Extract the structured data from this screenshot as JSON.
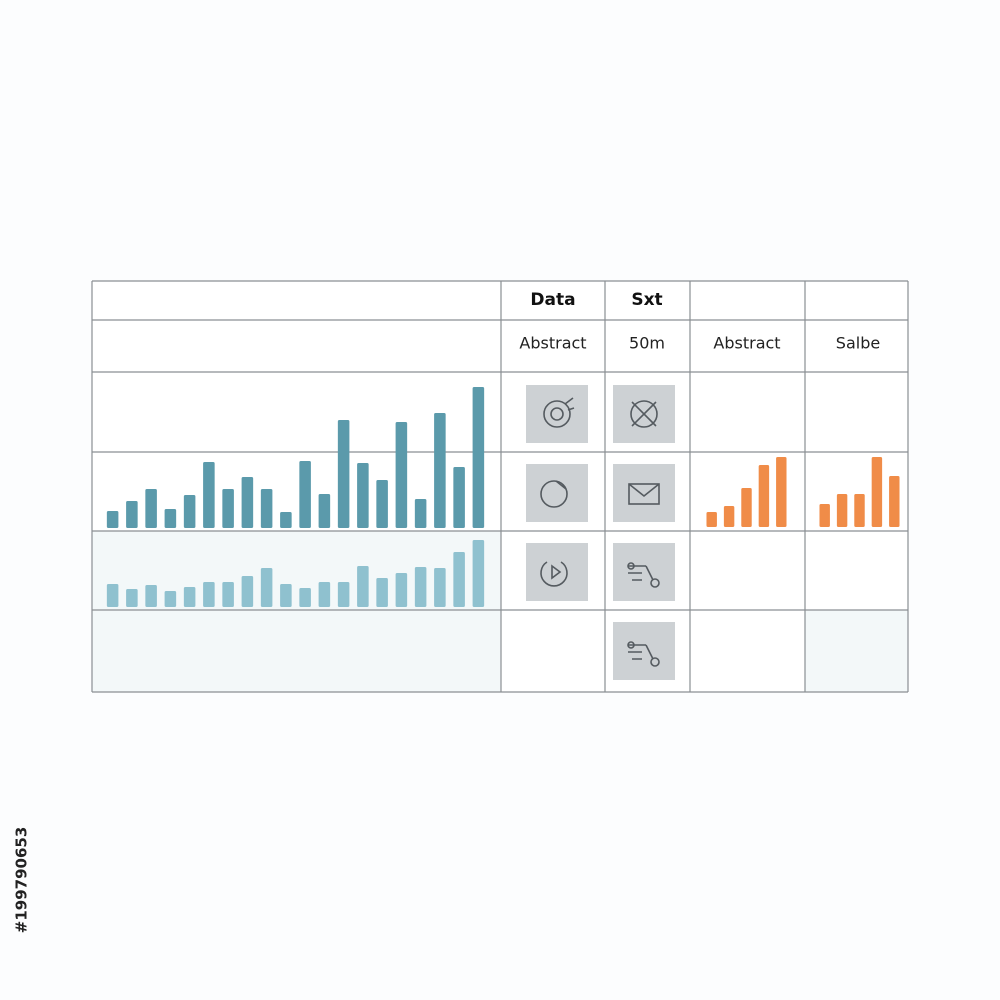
{
  "header": {
    "row1": [
      "Data",
      "Sxt"
    ],
    "row2": [
      "Abstract",
      "50m",
      "Abstract",
      "Salbe"
    ]
  },
  "watermark": "#199790653",
  "chart_data": [
    {
      "type": "bar",
      "color": "#5b9aab",
      "values": [
        17,
        27,
        39,
        19,
        33,
        66,
        39,
        51,
        39,
        16,
        67,
        34,
        108,
        65,
        48,
        106,
        29,
        115,
        61,
        141
      ]
    },
    {
      "type": "bar",
      "color": "#8fc1cf",
      "values": [
        23,
        18,
        22,
        16,
        20,
        25,
        25,
        31,
        39,
        23,
        19,
        25,
        25,
        41,
        29,
        34,
        40,
        39,
        55,
        67
      ]
    },
    {
      "type": "bar",
      "color": "#f08c48",
      "values": [
        15,
        21,
        39,
        62,
        70
      ]
    },
    {
      "type": "bar",
      "color": "#f08c48",
      "values": [
        23,
        33,
        33,
        70,
        51
      ]
    }
  ]
}
